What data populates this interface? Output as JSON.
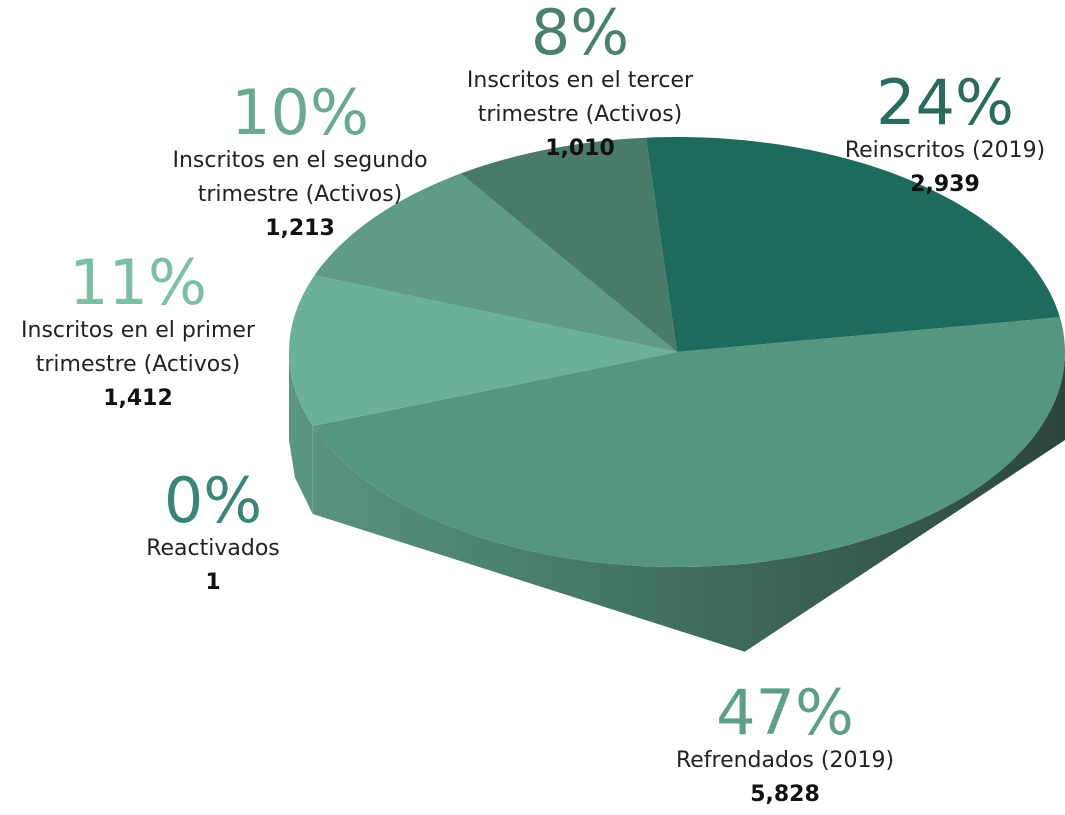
{
  "chart_data": {
    "type": "pie3d",
    "categories": [
      "Reinscritos (2019)",
      "Refrendados (2019)",
      "Reactivados",
      "Inscritos en el primer trimestre (Activos)",
      "Inscritos en el segundo trimestre (Activos)",
      "Inscritos en el tercer trimestre (Activos)"
    ],
    "values": [
      2939,
      5828,
      1,
      1412,
      1213,
      1010
    ],
    "value_labels": [
      "2,939",
      "5,828",
      "1",
      "1,412",
      "1,213",
      "1,010"
    ],
    "percentages": [
      24,
      47,
      0,
      11,
      10,
      8
    ],
    "percentage_labels": [
      "24%",
      "47%",
      "0%",
      "11%",
      "10%",
      "8%"
    ],
    "colors": [
      "#1e6b5e",
      "#55967f",
      "#3d8a78",
      "#6ab09a",
      "#5e9c86",
      "#4a7a68"
    ],
    "label_colors": [
      "#2a6b5e",
      "#5f9e88",
      "#3a8577",
      "#7cbfa5",
      "#6aa890",
      "#4a8070"
    ]
  }
}
